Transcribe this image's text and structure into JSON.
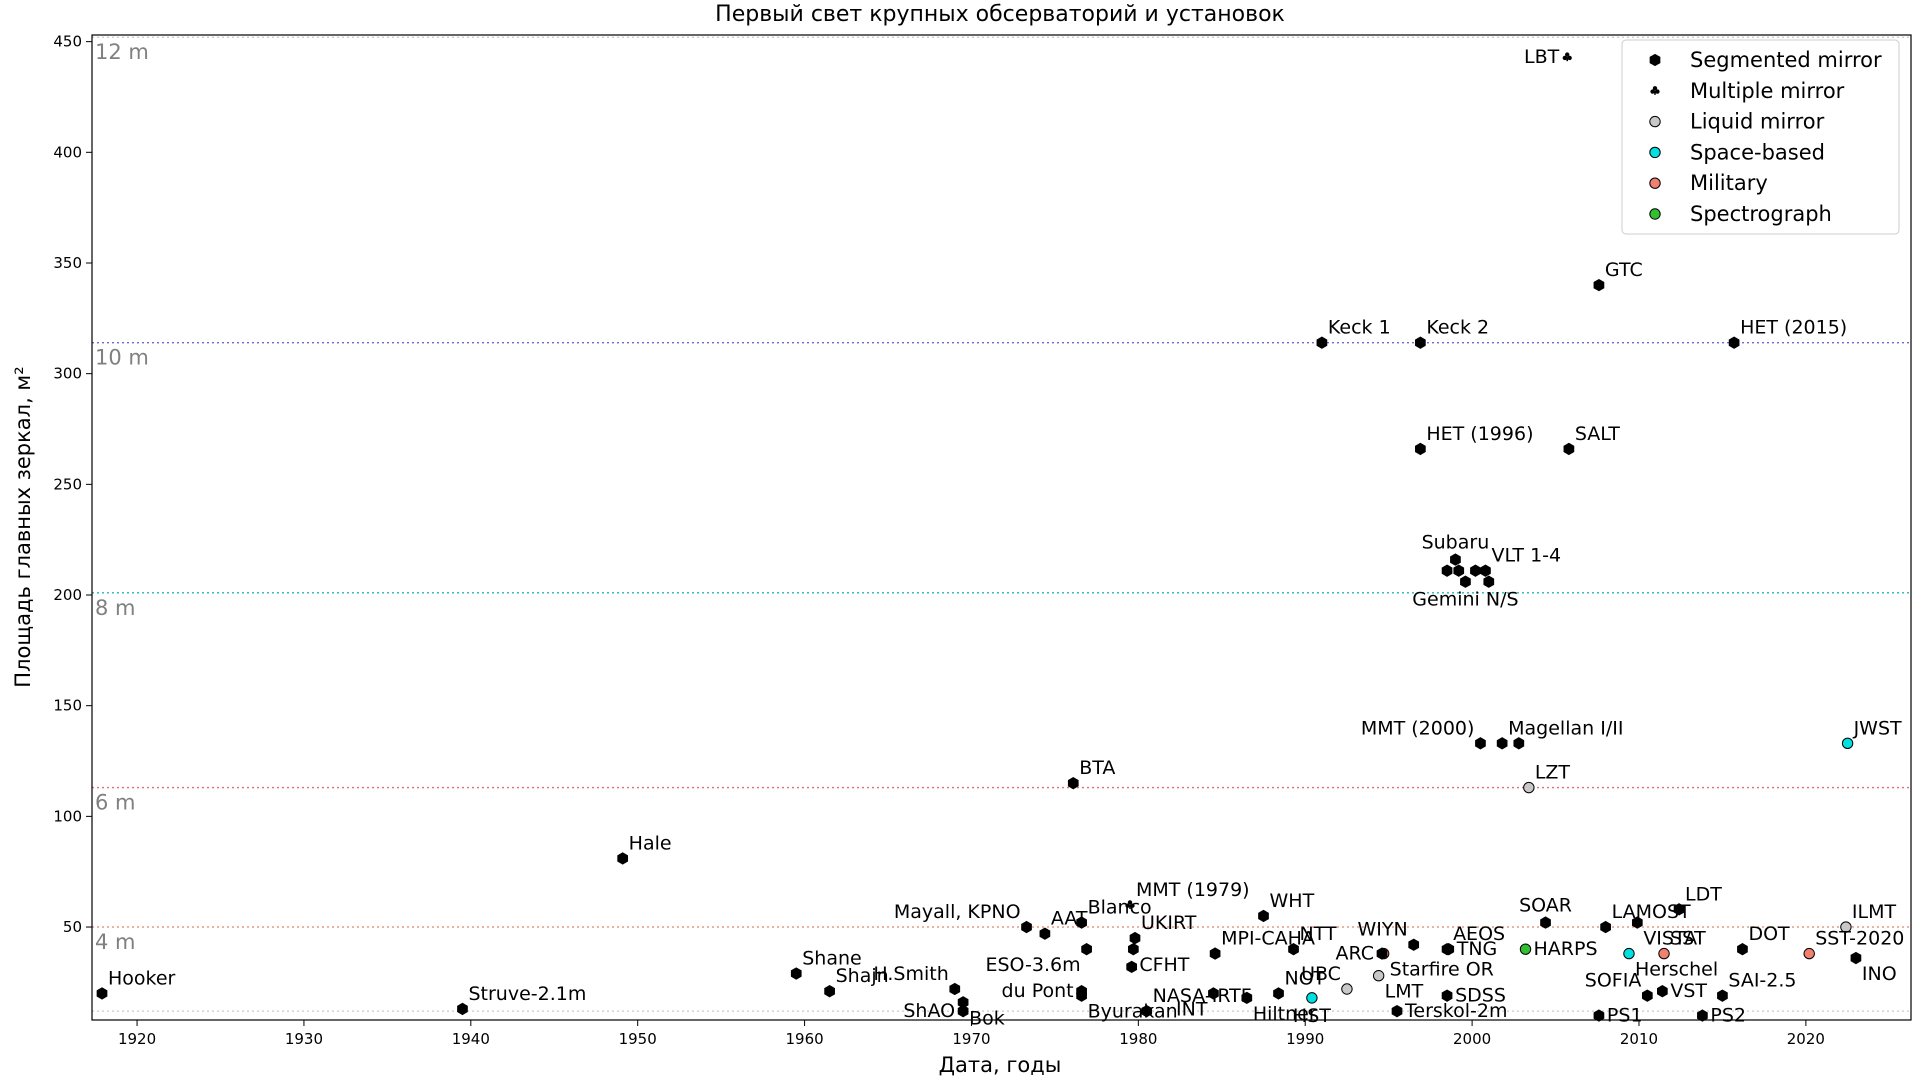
{
  "chart_data": {
    "type": "scatter",
    "title": "Первый свет крупных обсерваторий и установок",
    "xlabel": "Дата, годы",
    "ylabel": "Площадь главных зеркал, м²",
    "xlim": [
      1917.3,
      2026.3
    ],
    "ylim": [
      8,
      453
    ],
    "x_ticks": [
      1920,
      1930,
      1940,
      1950,
      1960,
      1970,
      1980,
      1990,
      2000,
      2010,
      2020
    ],
    "y_ticks": [
      50,
      100,
      150,
      200,
      250,
      300,
      350,
      400,
      450
    ],
    "grid": false,
    "legend_position": "top-right",
    "reference_lines": [
      {
        "label": "12 m",
        "y": 452,
        "color": "#c8c8c8"
      },
      {
        "label": "10 m",
        "y": 314,
        "color": "#6a6ad8"
      },
      {
        "label": "8 m",
        "y": 201,
        "color": "#20b8b8"
      },
      {
        "label": "6 m",
        "y": 113,
        "color": "#e07070"
      },
      {
        "label": "4 m",
        "y": 50,
        "color": "#e08868"
      },
      {
        "label": "",
        "y": 12,
        "color": "#c8c8c8"
      }
    ],
    "categories": [
      {
        "name": "Segmented mirror",
        "marker": "hexagon",
        "color": "#000000"
      },
      {
        "name": "Multiple mirror",
        "marker": "club",
        "color": "#000000"
      },
      {
        "name": "Liquid mirror",
        "marker": "circle",
        "color": "#c8c8c8"
      },
      {
        "name": "Space-based",
        "marker": "circle",
        "color": "#00e0e0"
      },
      {
        "name": "Military",
        "marker": "circle",
        "color": "#f08070"
      },
      {
        "name": "Spectrograph",
        "marker": "circle",
        "color": "#30c030"
      }
    ],
    "points": [
      {
        "x": 1917.9,
        "y": 20,
        "cat": 0,
        "label": "Hooker",
        "pos": "ne"
      },
      {
        "x": 1939.5,
        "y": 13,
        "cat": 0,
        "label": "Struve-2.1m",
        "pos": "ne"
      },
      {
        "x": 1949.1,
        "y": 81,
        "cat": 0,
        "label": "Hale",
        "pos": "ne"
      },
      {
        "x": 1959.5,
        "y": 29,
        "cat": 0,
        "label": "Shane",
        "pos": "ne"
      },
      {
        "x": 1961.5,
        "y": 21,
        "cat": 0,
        "label": "Shajn",
        "pos": "ne"
      },
      {
        "x": 1969.0,
        "y": 22,
        "cat": 0,
        "label": "H.Smith",
        "pos": "nw"
      },
      {
        "x": 1969.5,
        "y": 16,
        "cat": 0,
        "label": "Bok",
        "pos": "se"
      },
      {
        "x": 1969.5,
        "y": 12,
        "cat": 0,
        "label": "ShAO",
        "pos": "w"
      },
      {
        "x": 1973.3,
        "y": 50,
        "cat": 0,
        "label": "Mayall, KPNO",
        "pos": "nw"
      },
      {
        "x": 1974.4,
        "y": 47,
        "cat": 0,
        "label": "AAT",
        "pos": "ne"
      },
      {
        "x": 1976.1,
        "y": 115,
        "cat": 0,
        "label": "BTA",
        "pos": "ne"
      },
      {
        "x": 1976.6,
        "y": 52,
        "cat": 0,
        "label": "Blanco",
        "pos": "ne"
      },
      {
        "x": 1976.6,
        "y": 21,
        "cat": 0,
        "label": "du Pont",
        "pos": "w"
      },
      {
        "x": 1976.9,
        "y": 40,
        "cat": 0,
        "label": "ESO-3.6m",
        "pos": "sw"
      },
      {
        "x": 1976.6,
        "y": 19,
        "cat": 0,
        "label": "Byurakan",
        "pos": "se"
      },
      {
        "x": 1979.5,
        "y": 60,
        "cat": 1,
        "label": "MMT (1979)",
        "pos": "ne"
      },
      {
        "x": 1979.8,
        "y": 45,
        "cat": 0,
        "label": "UKIRT",
        "pos": "ne"
      },
      {
        "x": 1979.7,
        "y": 40,
        "cat": 0,
        "label": "CFHT",
        "pos": "se"
      },
      {
        "x": 1979.6,
        "y": 32,
        "cat": 0,
        "label": "",
        "pos": "ne"
      },
      {
        "x": 1980.5,
        "y": 12,
        "cat": 0,
        "label": "NASA-IRTF",
        "pos": "ne"
      },
      {
        "x": 1984.6,
        "y": 38,
        "cat": 0,
        "label": "MPI-CAHA",
        "pos": "ne"
      },
      {
        "x": 1984.5,
        "y": 20,
        "cat": 0,
        "label": "INT",
        "pos": "sw"
      },
      {
        "x": 1986.5,
        "y": 18,
        "cat": 0,
        "label": "Hiltner",
        "pos": "se"
      },
      {
        "x": 1987.5,
        "y": 55,
        "cat": 0,
        "label": "WHT",
        "pos": "ne"
      },
      {
        "x": 1988.4,
        "y": 20,
        "cat": 0,
        "label": "NOT",
        "pos": "ne"
      },
      {
        "x": 1989.3,
        "y": 40,
        "cat": 0,
        "label": "NTT",
        "pos": "ne"
      },
      {
        "x": 1990.4,
        "y": 18,
        "cat": 3,
        "label": "HST",
        "pos": "s"
      },
      {
        "x": 1992.5,
        "y": 22,
        "cat": 2,
        "label": "UBC",
        "pos": "nw"
      },
      {
        "x": 1994.4,
        "y": 28,
        "cat": 2,
        "label": "LMT",
        "pos": "se"
      },
      {
        "x": 1994.7,
        "y": 38,
        "cat": 4,
        "label": "Starfire OR",
        "pos": "se"
      },
      {
        "x": 1994.6,
        "y": 38,
        "cat": 0,
        "label": "ARC",
        "pos": "w"
      },
      {
        "x": 1995.5,
        "y": 12,
        "cat": 0,
        "label": "Terskol-2m",
        "pos": "e"
      },
      {
        "x": 1996.5,
        "y": 42,
        "cat": 0,
        "label": "WIYN",
        "pos": "nw"
      },
      {
        "x": 1996.9,
        "y": 266,
        "cat": 0,
        "label": "HET (1996)",
        "pos": "ne"
      },
      {
        "x": 1996.9,
        "y": 314,
        "cat": 0,
        "label": "Keck 2",
        "pos": "ne"
      },
      {
        "x": 1991.0,
        "y": 314,
        "cat": 0,
        "label": "Keck 1",
        "pos": "ne"
      },
      {
        "x": 1998.5,
        "y": 40,
        "cat": 0,
        "label": "AEOS",
        "pos": "ne"
      },
      {
        "x": 1998.5,
        "y": 19,
        "cat": 0,
        "label": "SDSS",
        "pos": "e"
      },
      {
        "x": 1998.6,
        "y": 40,
        "cat": 0,
        "label": "TNG",
        "pos": "e"
      },
      {
        "x": 1998.5,
        "y": 211,
        "cat": 0,
        "label": "",
        "pos": "ne"
      },
      {
        "x": 1999.0,
        "y": 216,
        "cat": 0,
        "label": "Subaru",
        "pos": "n"
      },
      {
        "x": 1999.2,
        "y": 211,
        "cat": 0,
        "label": "",
        "pos": "ne"
      },
      {
        "x": 1999.6,
        "y": 206,
        "cat": 0,
        "label": "Gemini N/S",
        "pos": "s"
      },
      {
        "x": 2000.2,
        "y": 211,
        "cat": 0,
        "label": "",
        "pos": "ne"
      },
      {
        "x": 2000.8,
        "y": 211,
        "cat": 0,
        "label": "VLT 1-4",
        "pos": "ne"
      },
      {
        "x": 2001.0,
        "y": 206,
        "cat": 0,
        "label": "",
        "pos": "ne"
      },
      {
        "x": 2000.5,
        "y": 133,
        "cat": 0,
        "label": "MMT (2000)",
        "pos": "nw"
      },
      {
        "x": 2001.8,
        "y": 133,
        "cat": 0,
        "label": "Magellan I/II",
        "pos": "ne"
      },
      {
        "x": 2002.8,
        "y": 133,
        "cat": 0,
        "label": "",
        "pos": "ne"
      },
      {
        "x": 2003.4,
        "y": 113,
        "cat": 2,
        "label": "LZT",
        "pos": "ne"
      },
      {
        "x": 2003.2,
        "y": 40,
        "cat": 5,
        "label": "HARPS",
        "pos": "e"
      },
      {
        "x": 2004.4,
        "y": 52,
        "cat": 0,
        "label": "SOAR",
        "pos": "n"
      },
      {
        "x": 2005.7,
        "y": 443,
        "cat": 1,
        "label": "LBT",
        "pos": "w"
      },
      {
        "x": 2005.8,
        "y": 266,
        "cat": 0,
        "label": "SALT",
        "pos": "ne"
      },
      {
        "x": 2007.6,
        "y": 340,
        "cat": 0,
        "label": "GTC",
        "pos": "ne"
      },
      {
        "x": 2007.6,
        "y": 10,
        "cat": 0,
        "label": "PS1",
        "pos": "e"
      },
      {
        "x": 2008.0,
        "y": 50,
        "cat": 0,
        "label": "LAMOST",
        "pos": "ne"
      },
      {
        "x": 2009.4,
        "y": 38,
        "cat": 3,
        "label": "Herschel",
        "pos": "se"
      },
      {
        "x": 2009.9,
        "y": 52,
        "cat": 0,
        "label": "VISTA",
        "pos": "se"
      },
      {
        "x": 2010.5,
        "y": 19,
        "cat": 0,
        "label": "SOFIA",
        "pos": "nw"
      },
      {
        "x": 2011.5,
        "y": 38,
        "cat": 4,
        "label": "SST",
        "pos": "ne"
      },
      {
        "x": 2011.4,
        "y": 21,
        "cat": 0,
        "label": "VST",
        "pos": "e"
      },
      {
        "x": 2012.4,
        "y": 58,
        "cat": 0,
        "label": "LDT",
        "pos": "ne"
      },
      {
        "x": 2013.8,
        "y": 10,
        "cat": 0,
        "label": "PS2",
        "pos": "e"
      },
      {
        "x": 2015.0,
        "y": 19,
        "cat": 0,
        "label": "SAI-2.5",
        "pos": "ne"
      },
      {
        "x": 2015.7,
        "y": 314,
        "cat": 0,
        "label": "HET (2015)",
        "pos": "ne"
      },
      {
        "x": 2016.2,
        "y": 40,
        "cat": 0,
        "label": "DOT",
        "pos": "ne"
      },
      {
        "x": 2020.2,
        "y": 38,
        "cat": 4,
        "label": "SST-2020",
        "pos": "ne"
      },
      {
        "x": 2022.4,
        "y": 50,
        "cat": 2,
        "label": "ILMT",
        "pos": "ne"
      },
      {
        "x": 2022.5,
        "y": 133,
        "cat": 3,
        "label": "JWST",
        "pos": "ne"
      },
      {
        "x": 2023.0,
        "y": 36,
        "cat": 0,
        "label": "INO",
        "pos": "se"
      }
    ]
  }
}
